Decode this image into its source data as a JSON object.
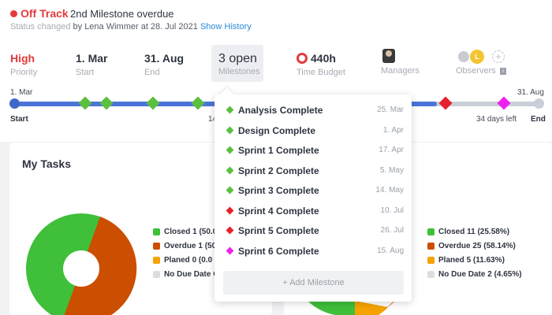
{
  "status": {
    "label": "Off Track",
    "message": "2nd Milestone overdue",
    "changed_prefix": "Status changed",
    "changed_by": "by Lena Wimmer at 28. Jul 2021",
    "history_link": "Show History"
  },
  "kpis": {
    "priority": {
      "value": "High",
      "label": "Priority"
    },
    "start": {
      "value": "1. Mar",
      "label": "Start"
    },
    "end": {
      "value": "31. Aug",
      "label": "End"
    },
    "milestones": {
      "value": "3 open",
      "label": "Milestones"
    },
    "time_budget": {
      "value": "440h",
      "label": "Time Budget"
    },
    "managers": {
      "label": "Managers"
    },
    "observers": {
      "label": "Observers",
      "initial": "L",
      "add": "+",
      "info": "i"
    }
  },
  "timeline": {
    "start_date": "1. Mar",
    "end_date": "31. Aug",
    "start_label": "Start",
    "end_label": "End",
    "mid_partial": "14",
    "days_left": "34 days left"
  },
  "milestones": [
    {
      "name": "Analysis Complete",
      "date": "25. Mar",
      "color": "#5bbf3f"
    },
    {
      "name": "Design Complete",
      "date": "1. Apr",
      "color": "#5bbf3f"
    },
    {
      "name": "Sprint 1 Complete",
      "date": "17. Apr",
      "color": "#5bbf3f"
    },
    {
      "name": "Sprint 2 Complete",
      "date": "5. May",
      "color": "#5bbf3f"
    },
    {
      "name": "Sprint 3 Complete",
      "date": "14. May",
      "color": "#5bbf3f"
    },
    {
      "name": "Sprint 4 Complete",
      "date": "10. Jul",
      "color": "#e8202a"
    },
    {
      "name": "Sprint 5 Complete",
      "date": "26. Jul",
      "color": "#e8202a"
    },
    {
      "name": "Sprint 6 Complete",
      "date": "15. Aug",
      "color": "#ee22ee"
    }
  ],
  "add_milestone": "+ Add Milestone",
  "my_tasks": {
    "title": "My Tasks",
    "legend": [
      {
        "label": "Closed 1 (50.0",
        "color": "#3fbf3a"
      },
      {
        "label": "Overdue 1 (50.",
        "color": "#cc4e00"
      },
      {
        "label": "Planed 0 (0.0",
        "color": "#f5a300"
      },
      {
        "label": "No Due Date C",
        "color": "#dddddd"
      }
    ],
    "pie": {
      "closed": 50,
      "overdue": 50
    }
  },
  "right_legend": [
    {
      "label": "Closed 11 (25.58%)",
      "color": "#3fbf3a"
    },
    {
      "label": "Overdue 25 (58.14%)",
      "color": "#cc4e00"
    },
    {
      "label": "Planed 5 (11.63%)",
      "color": "#f5a300"
    },
    {
      "label": "No Due Date 2 (4.65%)",
      "color": "#dddddd"
    }
  ],
  "colors": {
    "accent": "#e23b3b",
    "link": "#2a8bd8",
    "timeline": "#4a74d8"
  }
}
